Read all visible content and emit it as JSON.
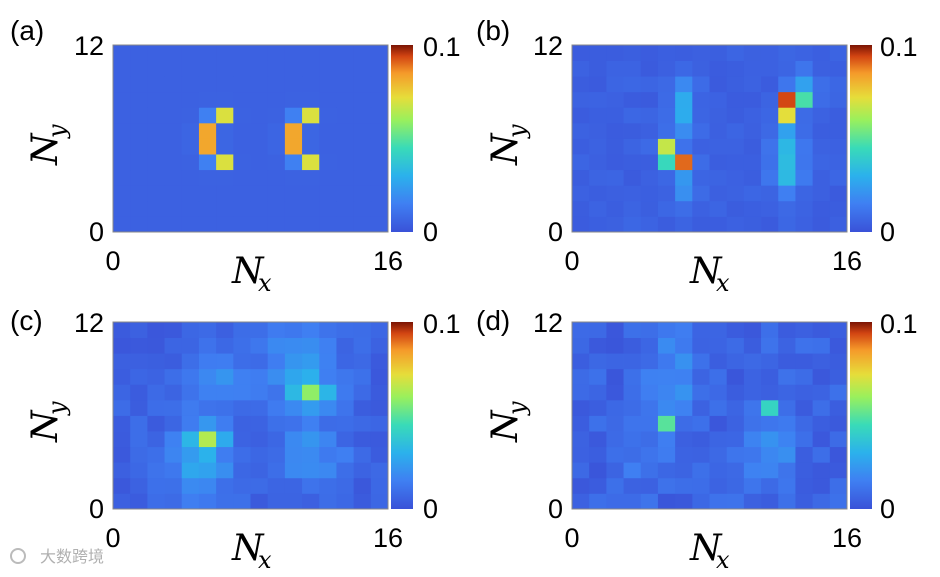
{
  "chart_data": [
    {
      "type": "heatmap",
      "panel_label": "(a)",
      "nx": 16,
      "ny": 12,
      "xlabel": "N",
      "xlabel_sub": "x",
      "ylabel": "N",
      "ylabel_sub": "y",
      "xticks": [
        "0",
        "16"
      ],
      "yticks": [
        "0",
        "12"
      ],
      "colorbar": {
        "min": 0,
        "max": 0.1,
        "ticks": [
          "0",
          "0.1"
        ]
      },
      "peaks": [
        {
          "x": 5.5,
          "y": 6,
          "amp": 0.1,
          "sx": 0.35,
          "sy": 0.7
        },
        {
          "x": 10.5,
          "y": 6,
          "amp": 0.1,
          "sx": 0.35,
          "sy": 0.7
        },
        {
          "x": 6.5,
          "y": 7.5,
          "amp": 0.065,
          "sx": 0.3,
          "sy": 0.3
        },
        {
          "x": 6.5,
          "y": 4.5,
          "amp": 0.065,
          "sx": 0.3,
          "sy": 0.3
        },
        {
          "x": 11.5,
          "y": 7.5,
          "amp": 0.065,
          "sx": 0.3,
          "sy": 0.3
        },
        {
          "x": 11.5,
          "y": 4.5,
          "amp": 0.065,
          "sx": 0.3,
          "sy": 0.3
        }
      ],
      "background": 0.005,
      "noise": 0
    },
    {
      "type": "heatmap",
      "panel_label": "(b)",
      "nx": 16,
      "ny": 12,
      "xlabel": "N",
      "xlabel_sub": "x",
      "ylabel": "N",
      "ylabel_sub": "y",
      "xticks": [
        "0",
        "16"
      ],
      "yticks": [
        "0",
        "12"
      ],
      "colorbar": {
        "min": 0,
        "max": 0.1,
        "ticks": [
          "0",
          "0.1"
        ]
      },
      "peaks": [
        {
          "x": 12.5,
          "y": 8.5,
          "amp": 0.085,
          "sx": 0.35,
          "sy": 0.35
        },
        {
          "x": 12.5,
          "y": 7.5,
          "amp": 0.06,
          "sx": 0.35,
          "sy": 0.35
        },
        {
          "x": 13.5,
          "y": 8.5,
          "amp": 0.035,
          "sx": 0.35,
          "sy": 0.35
        },
        {
          "x": 12.5,
          "y": 5.5,
          "amp": 0.025,
          "sx": 0.6,
          "sy": 1.2
        },
        {
          "x": 13.5,
          "y": 9.5,
          "amp": 0.02,
          "sx": 0.6,
          "sy": 0.6
        },
        {
          "x": 12.5,
          "y": 3.5,
          "amp": 0.02,
          "sx": 0.6,
          "sy": 0.8
        },
        {
          "x": 6.5,
          "y": 4.5,
          "amp": 0.08,
          "sx": 0.35,
          "sy": 0.35
        },
        {
          "x": 5.5,
          "y": 5.5,
          "amp": 0.06,
          "sx": 0.35,
          "sy": 0.35
        },
        {
          "x": 5.5,
          "y": 4.5,
          "amp": 0.035,
          "sx": 0.35,
          "sy": 0.35
        },
        {
          "x": 6.5,
          "y": 8.0,
          "amp": 0.025,
          "sx": 0.5,
          "sy": 1.3
        },
        {
          "x": 6.5,
          "y": 3.0,
          "amp": 0.02,
          "sx": 0.5,
          "sy": 0.8
        }
      ],
      "background": 0.005,
      "noise": 0.002
    },
    {
      "type": "heatmap",
      "panel_label": "(c)",
      "nx": 16,
      "ny": 12,
      "xlabel": "N",
      "xlabel_sub": "x",
      "ylabel": "N",
      "ylabel_sub": "y",
      "xticks": [
        "0",
        "16"
      ],
      "yticks": [
        "0",
        "12"
      ],
      "colorbar": {
        "min": 0,
        "max": 0.1,
        "ticks": [
          "0",
          "0.1"
        ]
      },
      "peaks": [
        {
          "x": 5.5,
          "y": 4.5,
          "amp": 0.045,
          "sx": 0.6,
          "sy": 0.5
        },
        {
          "x": 5.0,
          "y": 3.0,
          "amp": 0.02,
          "sx": 1.4,
          "sy": 2.0
        },
        {
          "x": 11.5,
          "y": 7.5,
          "amp": 0.04,
          "sx": 0.7,
          "sy": 0.5
        },
        {
          "x": 11.0,
          "y": 9.0,
          "amp": 0.02,
          "sx": 1.5,
          "sy": 2.0
        },
        {
          "x": 6.0,
          "y": 8.5,
          "amp": 0.015,
          "sx": 1.2,
          "sy": 1.5
        },
        {
          "x": 11.5,
          "y": 3.5,
          "amp": 0.015,
          "sx": 1.5,
          "sy": 1.5
        }
      ],
      "background": 0.005,
      "noise": 0.004
    },
    {
      "type": "heatmap",
      "panel_label": "(d)",
      "nx": 16,
      "ny": 12,
      "xlabel": "N",
      "xlabel_sub": "x",
      "ylabel": "N",
      "ylabel_sub": "y",
      "xticks": [
        "0",
        "16"
      ],
      "yticks": [
        "12",
        "0"
      ],
      "ytick_top_text": "12",
      "colorbar": {
        "min": 0,
        "max": 0.1,
        "ticks": [
          "0",
          "0.1"
        ]
      },
      "peaks": [
        {
          "x": 5.5,
          "y": 5.5,
          "amp": 0.035,
          "sx": 0.4,
          "sy": 0.4
        },
        {
          "x": 11.5,
          "y": 6.5,
          "amp": 0.035,
          "sx": 0.4,
          "sy": 0.4
        },
        {
          "x": 6.0,
          "y": 8.5,
          "amp": 0.015,
          "sx": 1.0,
          "sy": 2.0
        },
        {
          "x": 11.5,
          "y": 3.5,
          "amp": 0.015,
          "sx": 1.0,
          "sy": 1.5
        },
        {
          "x": 4.0,
          "y": 3.0,
          "amp": 0.01,
          "sx": 1.0,
          "sy": 1.0
        }
      ],
      "background": 0.006,
      "noise": 0.005
    }
  ],
  "watermark": "大数跨境"
}
